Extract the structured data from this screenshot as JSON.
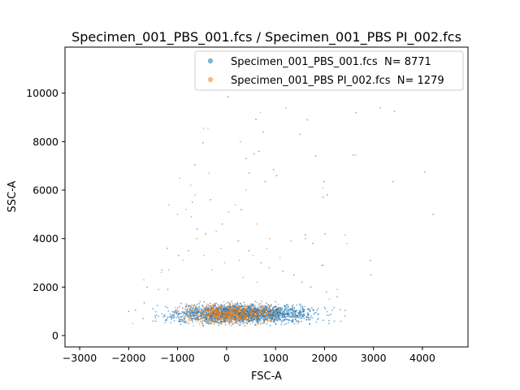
{
  "chart_data": {
    "type": "scatter",
    "title": "Specimen_001_PBS_001.fcs / Specimen_001_PBS PI_002.fcs",
    "xlabel": "FSC-A",
    "ylabel": "SSC-A",
    "xlim": [
      -3300,
      4930
    ],
    "ylim": [
      -470,
      11900
    ],
    "xticks": [
      -3000,
      -2000,
      -1000,
      0,
      1000,
      2000,
      3000,
      4000
    ],
    "yticks": [
      0,
      2000,
      4000,
      6000,
      8000,
      10000
    ],
    "xtick_labels": [
      "−3000",
      "−2000",
      "−1000",
      "0",
      "1000",
      "2000",
      "3000",
      "4000"
    ],
    "ytick_labels": [
      "0",
      "2000",
      "4000",
      "6000",
      "8000",
      "10000"
    ],
    "legend_position": "top-right",
    "grid": false,
    "series": [
      {
        "name": "Specimen_001_PBS_001.fcs",
        "legend_label": "Specimen_001_PBS_001.fcs  N= 8771",
        "n": 8771,
        "color": "#1f77b4",
        "core": {
          "x_range": [
            -1200,
            1800
          ],
          "y_range": [
            450,
            1300
          ],
          "count": 2200
        },
        "outliers": [
          [
            30,
            9850
          ],
          [
            600,
            8920
          ],
          [
            750,
            8400
          ],
          [
            660,
            7600
          ],
          [
            560,
            7500
          ],
          [
            400,
            7300
          ],
          [
            -650,
            7050
          ],
          [
            -480,
            7950
          ],
          [
            1820,
            7400
          ],
          [
            1650,
            8900
          ],
          [
            1500,
            8300
          ],
          [
            2640,
            9200
          ],
          [
            3140,
            9400
          ],
          [
            3430,
            9250
          ],
          [
            4050,
            6750
          ],
          [
            4220,
            5000
          ],
          [
            3400,
            6350
          ],
          [
            2590,
            7450
          ],
          [
            1990,
            6350
          ],
          [
            1970,
            5700
          ],
          [
            2060,
            5800
          ],
          [
            2010,
            4200
          ],
          [
            1610,
            4150
          ],
          [
            1760,
            3800
          ],
          [
            1950,
            2900
          ],
          [
            2940,
            3100
          ],
          [
            2950,
            2500
          ],
          [
            1020,
            6600
          ],
          [
            960,
            6850
          ],
          [
            460,
            6700
          ],
          [
            790,
            6350
          ],
          [
            -330,
            5600
          ],
          [
            -700,
            5500
          ],
          [
            -1210,
            3600
          ],
          [
            -1320,
            2700
          ],
          [
            -1620,
            2000
          ],
          [
            -1680,
            1350
          ],
          [
            -1860,
            1050
          ],
          [
            -2000,
            1000
          ],
          [
            -980,
            3300
          ],
          [
            -780,
            3500
          ],
          [
            -430,
            4200
          ],
          [
            -90,
            4600
          ],
          [
            240,
            3900
          ],
          [
            460,
            3500
          ],
          [
            700,
            3000
          ],
          [
            870,
            2800
          ],
          [
            1150,
            2650
          ],
          [
            1380,
            2500
          ],
          [
            1540,
            2200
          ],
          [
            1720,
            2000
          ],
          [
            2040,
            1800
          ],
          [
            2260,
            1600
          ],
          [
            2420,
            800
          ],
          [
            2090,
            500
          ],
          [
            2200,
            600
          ],
          [
            -1500,
            600
          ],
          [
            -1700,
            700
          ],
          [
            -1200,
            1900
          ],
          [
            -600,
            4400
          ],
          [
            300,
            5200
          ]
        ]
      },
      {
        "name": "Specimen_001_PBS PI_002.fcs",
        "legend_label": "Specimen_001_PBS PI_002.fcs  N= 1279",
        "n": 1279,
        "color": "#ff7f0e",
        "core": {
          "x_range": [
            -1000,
            1100
          ],
          "y_range": [
            450,
            1300
          ],
          "count": 650
        },
        "outliers": [
          [
            -470,
            8550
          ],
          [
            -380,
            8550
          ],
          [
            280,
            8000
          ],
          [
            1210,
            9400
          ],
          [
            690,
            9200
          ],
          [
            2640,
            7450
          ],
          [
            1970,
            6100
          ],
          [
            -960,
            6500
          ],
          [
            -730,
            6200
          ],
          [
            -360,
            6700
          ],
          [
            -640,
            5800
          ],
          [
            -830,
            5200
          ],
          [
            -1000,
            5000
          ],
          [
            -1180,
            5400
          ],
          [
            -720,
            4900
          ],
          [
            -610,
            4000
          ],
          [
            -210,
            4300
          ],
          [
            40,
            5100
          ],
          [
            180,
            5400
          ],
          [
            400,
            6000
          ],
          [
            620,
            4600
          ],
          [
            880,
            4000
          ],
          [
            1320,
            3900
          ],
          [
            1610,
            4000
          ],
          [
            2420,
            4150
          ],
          [
            2460,
            3800
          ],
          [
            -1330,
            2600
          ],
          [
            -1180,
            2700
          ],
          [
            -890,
            3100
          ],
          [
            -460,
            3300
          ],
          [
            -120,
            3600
          ],
          [
            260,
            3100
          ],
          [
            540,
            3300
          ],
          [
            820,
            3600
          ],
          [
            1090,
            3200
          ],
          [
            -1690,
            2300
          ],
          [
            -1920,
            500
          ],
          [
            -1390,
            1900
          ],
          [
            1980,
            2900
          ],
          [
            2260,
            1900
          ],
          [
            2100,
            1500
          ],
          [
            -300,
            2700
          ],
          [
            -40,
            3000
          ],
          [
            340,
            2400
          ],
          [
            620,
            2200
          ]
        ]
      }
    ]
  }
}
